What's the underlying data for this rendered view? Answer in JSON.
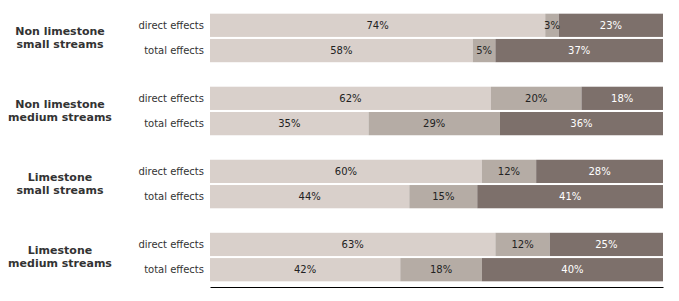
{
  "chart_data": {
    "type": "bar",
    "orientation": "horizontal",
    "stacked": true,
    "data_labels": true,
    "tick_labels": false,
    "groups": [
      {
        "label": "Non limestone\nsmall streams",
        "categories": [
          "direct effects",
          "total effects"
        ]
      },
      {
        "label": "Non limestone\nmedium streams",
        "categories": [
          "direct effects",
          "total effects"
        ]
      },
      {
        "label": "Limestone\nsmall streams",
        "categories": [
          "direct effects",
          "total effects"
        ]
      },
      {
        "label": "Limestone\nmedium streams",
        "categories": [
          "direct effects",
          "total effects"
        ]
      }
    ],
    "series": [
      {
        "color": "#d9d0cb",
        "values": [
          74,
          58,
          62,
          35,
          60,
          44,
          63,
          42
        ],
        "value_labels": [
          "74%",
          "58%",
          "62%",
          "35%",
          "60%",
          "44%",
          "63%",
          "42%"
        ]
      },
      {
        "color": "#b5aca5",
        "values": [
          3,
          5,
          20,
          29,
          12,
          15,
          12,
          18
        ],
        "value_labels": [
          "3%",
          "5%",
          "20%",
          "29%",
          "12%",
          "15%",
          "12%",
          "18%"
        ]
      },
      {
        "color": "#7d706b",
        "values": [
          23,
          37,
          18,
          36,
          28,
          41,
          25,
          40
        ],
        "value_labels": [
          "23%",
          "37%",
          "18%",
          "36%",
          "28%",
          "41%",
          "25%",
          "40%"
        ]
      }
    ],
    "xlim": [
      0,
      100
    ]
  }
}
